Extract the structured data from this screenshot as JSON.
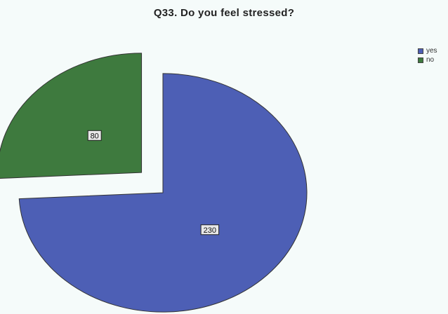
{
  "chart_data": {
    "type": "pie",
    "title": "Q33. Do you feel stressed?",
    "labels": [
      "yes",
      "no"
    ],
    "values": [
      230,
      80
    ],
    "colors": [
      "#4d5fb5",
      "#3e7a3e"
    ],
    "exploded": [
      "no"
    ],
    "legend_position": "top-right"
  }
}
